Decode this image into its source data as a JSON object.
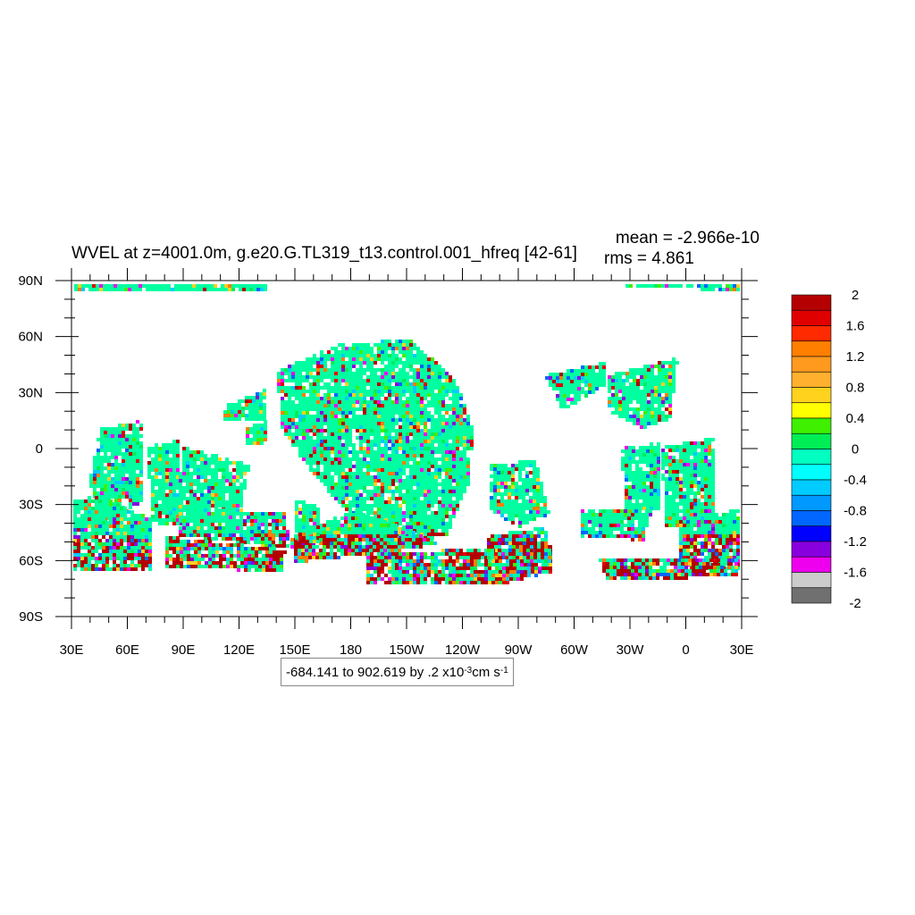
{
  "title": "WVEL at z=4001.0m, g.e20.G.TL319_t13.control.001_hfreq [42-61]",
  "stats": {
    "mean": "mean = -2.966e-10",
    "rms": "rms = 4.861"
  },
  "range": {
    "text": "-684.141 to 902.619 by .2 x10",
    "exp": "-3",
    "unit": " cm s",
    "unit_exp": "-1"
  },
  "lat_ticks": [
    "90N",
    "60N",
    "30N",
    "0",
    "30S",
    "60S",
    "90S"
  ],
  "lon_ticks": [
    "30E",
    "60E",
    "90E",
    "120E",
    "150E",
    "180",
    "150W",
    "120W",
    "90W",
    "60W",
    "30W",
    "0",
    "30E"
  ],
  "colorbar": {
    "labels": [
      "2",
      "1.6",
      "1.2",
      "0.8",
      "0.4",
      "0",
      "-0.4",
      "-0.8",
      "-1.2",
      "-1.6",
      "-2"
    ],
    "colors": [
      "#b40000",
      "#e00000",
      "#ff2a00",
      "#ff7f00",
      "#ff9a1f",
      "#ffb02e",
      "#ffd21e",
      "#ffff00",
      "#3ff000",
      "#00ee55",
      "#00ffc0",
      "#00ffff",
      "#00ccff",
      "#0099ff",
      "#0066ff",
      "#0000ff",
      "#8800dd",
      "#ee00ee",
      "#cccccc",
      "#707070"
    ]
  },
  "map_colors": {
    "land": "#ffffff",
    "dominant": "#00ffa0",
    "noise": [
      "#b40000",
      "#e00000",
      "#00ee55",
      "#00ccff",
      "#0066ff",
      "#8800dd",
      "#ffd21e",
      "#3ff000",
      "#ee00ee",
      "#ff7f00"
    ]
  }
}
